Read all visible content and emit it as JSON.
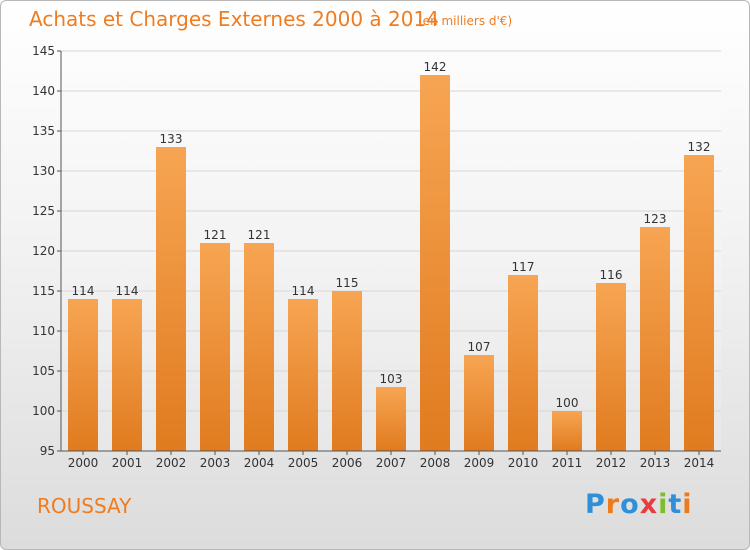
{
  "title": "Achats et Charges Externes 2000 à 2014",
  "subtitle": "(en milliers d'€)",
  "commune": "ROUSSAY",
  "brand": "Proxiti",
  "colors": {
    "accent": "#f07c20",
    "bar_top": "#f7a553",
    "bar_bottom": "#e07b1f",
    "brand_letters": [
      "#2f8fd8",
      "#ee7a1a",
      "#2f8fd8",
      "#e93c3c",
      "#7cbf2b",
      "#2f8fd8",
      "#ee7a1a"
    ]
  },
  "chart_data": {
    "type": "bar",
    "title": "Achats et Charges Externes 2000 à 2014",
    "subtitle": "(en milliers d'€)",
    "categories": [
      "2000",
      "2001",
      "2002",
      "2003",
      "2004",
      "2005",
      "2006",
      "2007",
      "2008",
      "2009",
      "2010",
      "2011",
      "2012",
      "2013",
      "2014"
    ],
    "values": [
      114,
      114,
      133,
      121,
      121,
      114,
      115,
      103,
      142,
      107,
      117,
      100,
      116,
      123,
      132
    ],
    "ylim": [
      95,
      145
    ],
    "yticks": [
      95,
      100,
      105,
      110,
      115,
      120,
      125,
      130,
      135,
      140,
      145
    ],
    "grid": true,
    "xlabel": "",
    "ylabel": ""
  }
}
